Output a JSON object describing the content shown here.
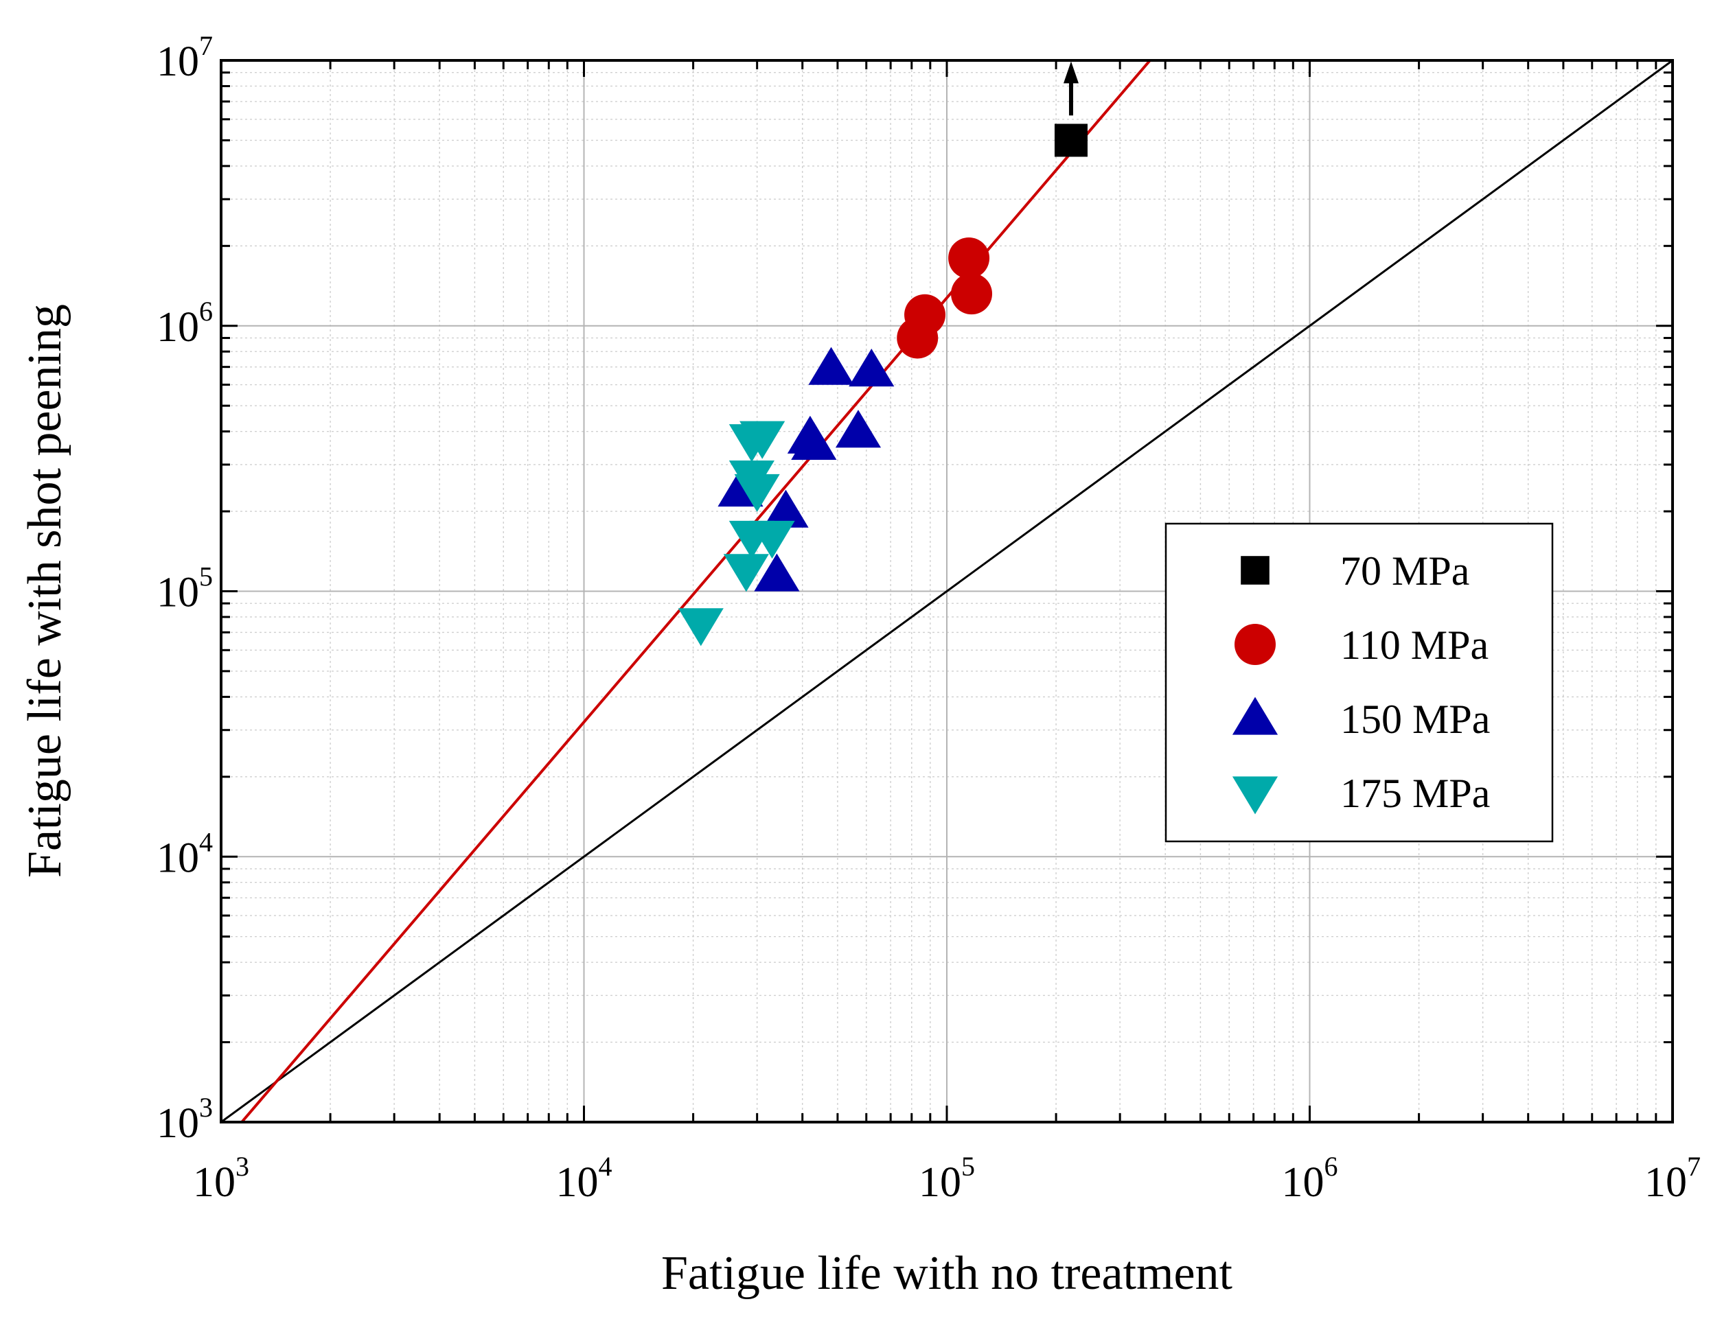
{
  "chart_data": {
    "type": "scatter",
    "xscale": "log",
    "yscale": "log",
    "xlim": [
      1000,
      10000000
    ],
    "ylim": [
      1000,
      10000000
    ],
    "xlabel": "Fatigue life with no treatment",
    "ylabel": "Fatigue life with shot peening",
    "tick_base": "10",
    "x_ticks": [
      {
        "value": 1000,
        "exp": "3"
      },
      {
        "value": 10000,
        "exp": "4"
      },
      {
        "value": 100000,
        "exp": "5"
      },
      {
        "value": 1000000,
        "exp": "6"
      },
      {
        "value": 10000000,
        "exp": "7"
      }
    ],
    "y_ticks": [
      {
        "value": 1000,
        "exp": "3"
      },
      {
        "value": 10000,
        "exp": "4"
      },
      {
        "value": 100000,
        "exp": "5"
      },
      {
        "value": 1000000,
        "exp": "6"
      },
      {
        "value": 10000000,
        "exp": "7"
      }
    ],
    "grid": true,
    "legend_position": "center-right",
    "series": [
      {
        "name": "70 MPa",
        "marker": "square",
        "color": "#000000",
        "points": [
          [
            220000,
            5000000
          ]
        ]
      },
      {
        "name": "110 MPa",
        "marker": "circle",
        "color": "#cc0000",
        "points": [
          [
            83000,
            900000
          ],
          [
            87000,
            1100000
          ],
          [
            115000,
            1800000
          ],
          [
            117000,
            1320000
          ]
        ]
      },
      {
        "name": "150 MPa",
        "marker": "triangle-up",
        "color": "#0000aa",
        "points": [
          [
            27000,
            240000
          ],
          [
            34000,
            115000
          ],
          [
            36000,
            200000
          ],
          [
            42000,
            380000
          ],
          [
            43000,
            360000
          ],
          [
            48000,
            690000
          ],
          [
            57000,
            400000
          ],
          [
            62000,
            680000
          ]
        ]
      },
      {
        "name": "175 MPa",
        "marker": "triangle-down",
        "color": "#00aaaa",
        "points": [
          [
            21000,
            75000
          ],
          [
            28000,
            120000
          ],
          [
            29000,
            370000
          ],
          [
            29000,
            270000
          ],
          [
            29000,
            160000
          ],
          [
            31000,
            380000
          ],
          [
            30000,
            240000
          ],
          [
            33000,
            160000
          ]
        ]
      }
    ],
    "reference_lines": [
      {
        "name": "y = x",
        "color": "#000000",
        "points": [
          [
            1000,
            1000
          ],
          [
            10000000,
            10000000
          ]
        ]
      },
      {
        "name": "fit",
        "color": "#cc0000",
        "points": [
          [
            1140,
            1000
          ],
          [
            363000,
            10000000
          ]
        ]
      }
    ],
    "annotations": [
      {
        "name": "runout arrow",
        "color": "#000000",
        "from": [
          220000,
          6200000
        ],
        "to": [
          220000,
          9800000
        ]
      }
    ]
  }
}
